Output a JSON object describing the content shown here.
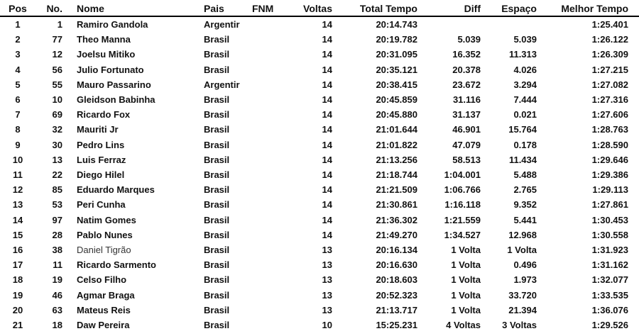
{
  "headers": {
    "pos": "Pos",
    "no": "No.",
    "nome": "Nome",
    "pais": "Pais",
    "fnm": "FNM",
    "voltas": "Voltas",
    "total": "Total Tempo",
    "diff": "Diff",
    "esp": "Espaço",
    "melhor": "Melhor Tempo"
  },
  "rows": [
    {
      "pos": "1",
      "no": "1",
      "nome": "Ramiro Gandola",
      "pais": "Argentir",
      "voltas": "14",
      "total": "20:14.743",
      "diff": "",
      "esp": "",
      "melhor": "1:25.401"
    },
    {
      "pos": "2",
      "no": "77",
      "nome": "Theo Manna",
      "pais": "Brasil",
      "voltas": "14",
      "total": "20:19.782",
      "diff": "5.039",
      "esp": "5.039",
      "melhor": "1:26.122"
    },
    {
      "pos": "3",
      "no": "12",
      "nome": "Joelsu Mitiko",
      "pais": "Brasil",
      "voltas": "14",
      "total": "20:31.095",
      "diff": "16.352",
      "esp": "11.313",
      "melhor": "1:26.309"
    },
    {
      "pos": "4",
      "no": "56",
      "nome": "Julio Fortunato",
      "pais": "Brasil",
      "voltas": "14",
      "total": "20:35.121",
      "diff": "20.378",
      "esp": "4.026",
      "melhor": "1:27.215"
    },
    {
      "pos": "5",
      "no": "55",
      "nome": "Mauro Passarino",
      "pais": "Argentir",
      "voltas": "14",
      "total": "20:38.415",
      "diff": "23.672",
      "esp": "3.294",
      "melhor": "1:27.082"
    },
    {
      "pos": "6",
      "no": "10",
      "nome": "Gleidson Babinha",
      "pais": "Brasil",
      "voltas": "14",
      "total": "20:45.859",
      "diff": "31.116",
      "esp": "7.444",
      "melhor": "1:27.316"
    },
    {
      "pos": "7",
      "no": "69",
      "nome": "Ricardo Fox",
      "pais": "Brasil",
      "voltas": "14",
      "total": "20:45.880",
      "diff": "31.137",
      "esp": "0.021",
      "melhor": "1:27.606"
    },
    {
      "pos": "8",
      "no": "32",
      "nome": "Mauriti Jr",
      "pais": "Brasil",
      "voltas": "14",
      "total": "21:01.644",
      "diff": "46.901",
      "esp": "15.764",
      "melhor": "1:28.763"
    },
    {
      "pos": "9",
      "no": "30",
      "nome": "Pedro Lins",
      "pais": "Brasil",
      "voltas": "14",
      "total": "21:01.822",
      "diff": "47.079",
      "esp": "0.178",
      "melhor": "1:28.590"
    },
    {
      "pos": "10",
      "no": "13",
      "nome": "Luis Ferraz",
      "pais": "Brasil",
      "voltas": "14",
      "total": "21:13.256",
      "diff": "58.513",
      "esp": "11.434",
      "melhor": "1:29.646"
    },
    {
      "pos": "11",
      "no": "22",
      "nome": "Diego Hilel",
      "pais": "Brasil",
      "voltas": "14",
      "total": "21:18.744",
      "diff": "1:04.001",
      "esp": "5.488",
      "melhor": "1:29.386"
    },
    {
      "pos": "12",
      "no": "85",
      "nome": "Eduardo Marques",
      "pais": "Brasil",
      "voltas": "14",
      "total": "21:21.509",
      "diff": "1:06.766",
      "esp": "2.765",
      "melhor": "1:29.113"
    },
    {
      "pos": "13",
      "no": "53",
      "nome": "Peri Cunha",
      "pais": "Brasil",
      "voltas": "14",
      "total": "21:30.861",
      "diff": "1:16.118",
      "esp": "9.352",
      "melhor": "1:27.861"
    },
    {
      "pos": "14",
      "no": "97",
      "nome": "Natim Gomes",
      "pais": "Brasil",
      "voltas": "14",
      "total": "21:36.302",
      "diff": "1:21.559",
      "esp": "5.441",
      "melhor": "1:30.453"
    },
    {
      "pos": "15",
      "no": "28",
      "nome": "Pablo Nunes",
      "pais": "Brasil",
      "voltas": "14",
      "total": "21:49.270",
      "diff": "1:34.527",
      "esp": "12.968",
      "melhor": "1:30.558"
    },
    {
      "pos": "16",
      "no": "38",
      "nome": "Daniel Tigrão",
      "pais": "Brasil",
      "voltas": "13",
      "total": "20:16.134",
      "diff": "1 Volta",
      "esp": "1 Volta",
      "melhor": "1:31.923",
      "nome_normal": true
    },
    {
      "pos": "17",
      "no": "11",
      "nome": "Ricardo Sarmento",
      "pais": "Brasil",
      "voltas": "13",
      "total": "20:16.630",
      "diff": "1 Volta",
      "esp": "0.496",
      "melhor": "1:31.162"
    },
    {
      "pos": "18",
      "no": "19",
      "nome": "Celso Filho",
      "pais": "Brasil",
      "voltas": "13",
      "total": "20:18.603",
      "diff": "1 Volta",
      "esp": "1.973",
      "melhor": "1:32.077"
    },
    {
      "pos": "19",
      "no": "46",
      "nome": "Agmar Braga",
      "pais": "Brasil",
      "voltas": "13",
      "total": "20:52.323",
      "diff": "1 Volta",
      "esp": "33.720",
      "melhor": "1:33.535"
    },
    {
      "pos": "20",
      "no": "63",
      "nome": "Mateus Reis",
      "pais": "Brasil",
      "voltas": "13",
      "total": "21:13.717",
      "diff": "1 Volta",
      "esp": "21.394",
      "melhor": "1:36.076"
    },
    {
      "pos": "21",
      "no": "18",
      "nome": "Daw Pereira",
      "pais": "Brasil",
      "voltas": "10",
      "total": "15:25.231",
      "diff": "4 Voltas",
      "esp": "3 Voltas",
      "melhor": "1:29.526"
    }
  ]
}
